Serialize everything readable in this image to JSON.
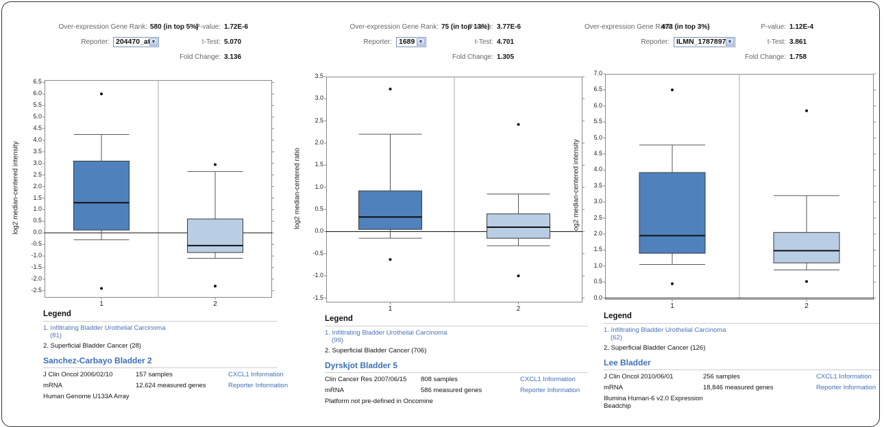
{
  "colors": {
    "box1": "#4f81bd",
    "box2": "#b9cde5",
    "link": "#3f6fb5"
  },
  "panels": [
    {
      "stats": {
        "rank_label": "Over-expression Gene Rank:",
        "rank_value": "580 (in top 5%)",
        "reporter_label": "Reporter:",
        "reporter_value": "204470_at",
        "pvalue_label": "P-value:",
        "pvalue_value": "1.72E-6",
        "ttest_label": "t-Test:",
        "ttest_value": "5.070",
        "fold_label": "Fold Change:",
        "fold_value": "3.136"
      },
      "chart_data": {
        "type": "box",
        "ylabel": "log2 median-centered intensity",
        "ylim": [
          -2.8,
          6.6
        ],
        "yticks": [
          "6.5",
          "6.0",
          "5.5",
          "5.0",
          "4.5",
          "4.0",
          "3.5",
          "3.0",
          "2.5",
          "2.0",
          "1.5",
          "1.0",
          "0.5",
          "0.0",
          "-0.5",
          "-1.0",
          "-1.5",
          "-2.0",
          "-2.5"
        ],
        "categories": [
          "1",
          "2"
        ],
        "boxes": [
          {
            "name": "1",
            "whisker_low": -0.3,
            "q1": 0.12,
            "median": 1.3,
            "q3": 3.1,
            "whisker_high": 4.25,
            "outliers": [
              6.0,
              -2.4
            ]
          },
          {
            "name": "2",
            "whisker_low": -1.1,
            "q1": -0.85,
            "median": -0.55,
            "q3": 0.6,
            "whisker_high": 2.65,
            "outliers": [
              2.95,
              -2.3
            ]
          }
        ]
      },
      "legend": {
        "title": "Legend",
        "item1": "1. Infiltrating Bladder Urothelial Carcinoma",
        "item1_n": "(81)",
        "item2": "2. Superficial Bladder Cancer (28)"
      },
      "dataset": {
        "title": "Sanchez-Carbayo Bladder 2",
        "row1": {
          "col1": "J Clin Oncol 2006/02/10",
          "col2": "157 samples",
          "link": "CXCL1 Information"
        },
        "row2": {
          "col1": "mRNA",
          "col2": "12,624 measured genes",
          "link": "Reporter Information"
        },
        "row3": {
          "col1": "Human Genome U133A Array",
          "col1b": ""
        }
      }
    },
    {
      "stats": {
        "rank_label": "Over-expression Gene Rank:",
        "rank_value": "75 (in top 13%)",
        "reporter_label": "Reporter:",
        "reporter_value": "1689",
        "pvalue_label": "P-value:",
        "pvalue_value": "3.77E-6",
        "ttest_label": "t-Test:",
        "ttest_value": "4.701",
        "fold_label": "Fold Change:",
        "fold_value": "1.305"
      },
      "chart_data": {
        "type": "box",
        "ylabel": "log2 median-centered ratio",
        "ylim": [
          -1.6,
          3.5
        ],
        "yticks": [
          "3.5",
          "3.0",
          "2.5",
          "2.0",
          "1.5",
          "1.0",
          "0.5",
          "0.0",
          "-0.5",
          "-1.0",
          "-1.5"
        ],
        "categories": [
          "1",
          "2"
        ],
        "boxes": [
          {
            "name": "1",
            "whisker_low": -0.15,
            "q1": 0.05,
            "median": 0.33,
            "q3": 0.92,
            "whisker_high": 2.2,
            "outliers": [
              3.22,
              -0.63
            ]
          },
          {
            "name": "2",
            "whisker_low": -0.32,
            "q1": -0.15,
            "median": 0.1,
            "q3": 0.4,
            "whisker_high": 0.85,
            "outliers": [
              2.42,
              -1.0
            ]
          }
        ]
      },
      "legend": {
        "title": "Legend",
        "item1": "1. Infiltrating Bladder Urothelial Carcinoma",
        "item1_n": "(99)",
        "item2": "2. Superficial Bladder Cancer (706)"
      },
      "dataset": {
        "title": "Dyrskjot Bladder 5",
        "row1": {
          "col1": "Clin Cancer Res 2007/06/15",
          "col2": "808 samples",
          "link": "CXCL1 Information"
        },
        "row2": {
          "col1": "mRNA",
          "col2": "586 measured genes",
          "link": "Reporter Information"
        },
        "row3": {
          "col1": "Platform not pre-defined in Oncomine",
          "col1b": ""
        }
      }
    },
    {
      "stats": {
        "rank_label": "Over-expression Gene Rank:",
        "rank_value": "473 (in top 3%)",
        "reporter_label": "Reporter:",
        "reporter_value": "ILMN_1787897",
        "pvalue_label": "P-value:",
        "pvalue_value": "1.12E-4",
        "ttest_label": "t-Test:",
        "ttest_value": "3.861",
        "fold_label": "Fold Change:",
        "fold_value": "1.758"
      },
      "chart_data": {
        "type": "box",
        "ylabel": "log2 median-centered intensity",
        "ylim": [
          -0.05,
          7.0
        ],
        "yticks": [
          "7.0",
          "6.5",
          "6.0",
          "5.5",
          "5.0",
          "4.5",
          "4.0",
          "3.5",
          "3.0",
          "2.5",
          "2.0",
          "1.5",
          "1.0",
          "0.5",
          "0.0"
        ],
        "categories": [
          "1",
          "2"
        ],
        "boxes": [
          {
            "name": "1",
            "whisker_low": 1.05,
            "q1": 1.4,
            "median": 1.95,
            "q3": 3.92,
            "whisker_high": 4.78,
            "outliers": [
              6.5,
              0.45
            ]
          },
          {
            "name": "2",
            "whisker_low": 0.88,
            "q1": 1.1,
            "median": 1.48,
            "q3": 2.05,
            "whisker_high": 3.2,
            "outliers": [
              5.85,
              0.52
            ]
          }
        ]
      },
      "legend": {
        "title": "Legend",
        "item1": "1. Infiltrating Bladder Urothelial Carcinoma",
        "item1_n": "(62)",
        "item2": "2. Superficial Bladder Cancer (126)"
      },
      "dataset": {
        "title": "Lee Bladder",
        "row1": {
          "col1": "J Clin Oncol 2010/06/01",
          "col2": "256 samples",
          "link": "CXCL1 Information"
        },
        "row2": {
          "col1": "mRNA",
          "col2": "18,846 measured genes",
          "link": "Reporter Information"
        },
        "row3": {
          "col1": "Illumina Human-6 v2.0 Expression",
          "col1b": "Beadchip"
        }
      }
    }
  ]
}
